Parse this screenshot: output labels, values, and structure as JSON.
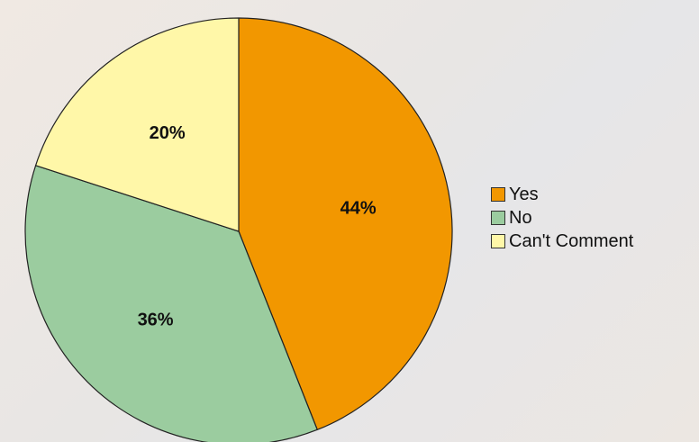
{
  "chart_data": {
    "type": "pie",
    "slices": [
      {
        "label": "Yes",
        "value": 44,
        "display": "44%",
        "color": "#f29700"
      },
      {
        "label": "No",
        "value": 36,
        "display": "36%",
        "color": "#9bcc9f"
      },
      {
        "label": "Can't Comment",
        "value": 20,
        "display": "20%",
        "color": "#fff7a8"
      }
    ],
    "start_angle_deg": 0,
    "direction": "clockwise",
    "legend_position": "right",
    "edge_color": "#222222"
  },
  "legend": {
    "items": [
      {
        "label": "Yes",
        "color": "#f29700"
      },
      {
        "label": "No",
        "color": "#9bcc9f"
      },
      {
        "label": "Can't Comment",
        "color": "#fff7a8"
      }
    ]
  }
}
